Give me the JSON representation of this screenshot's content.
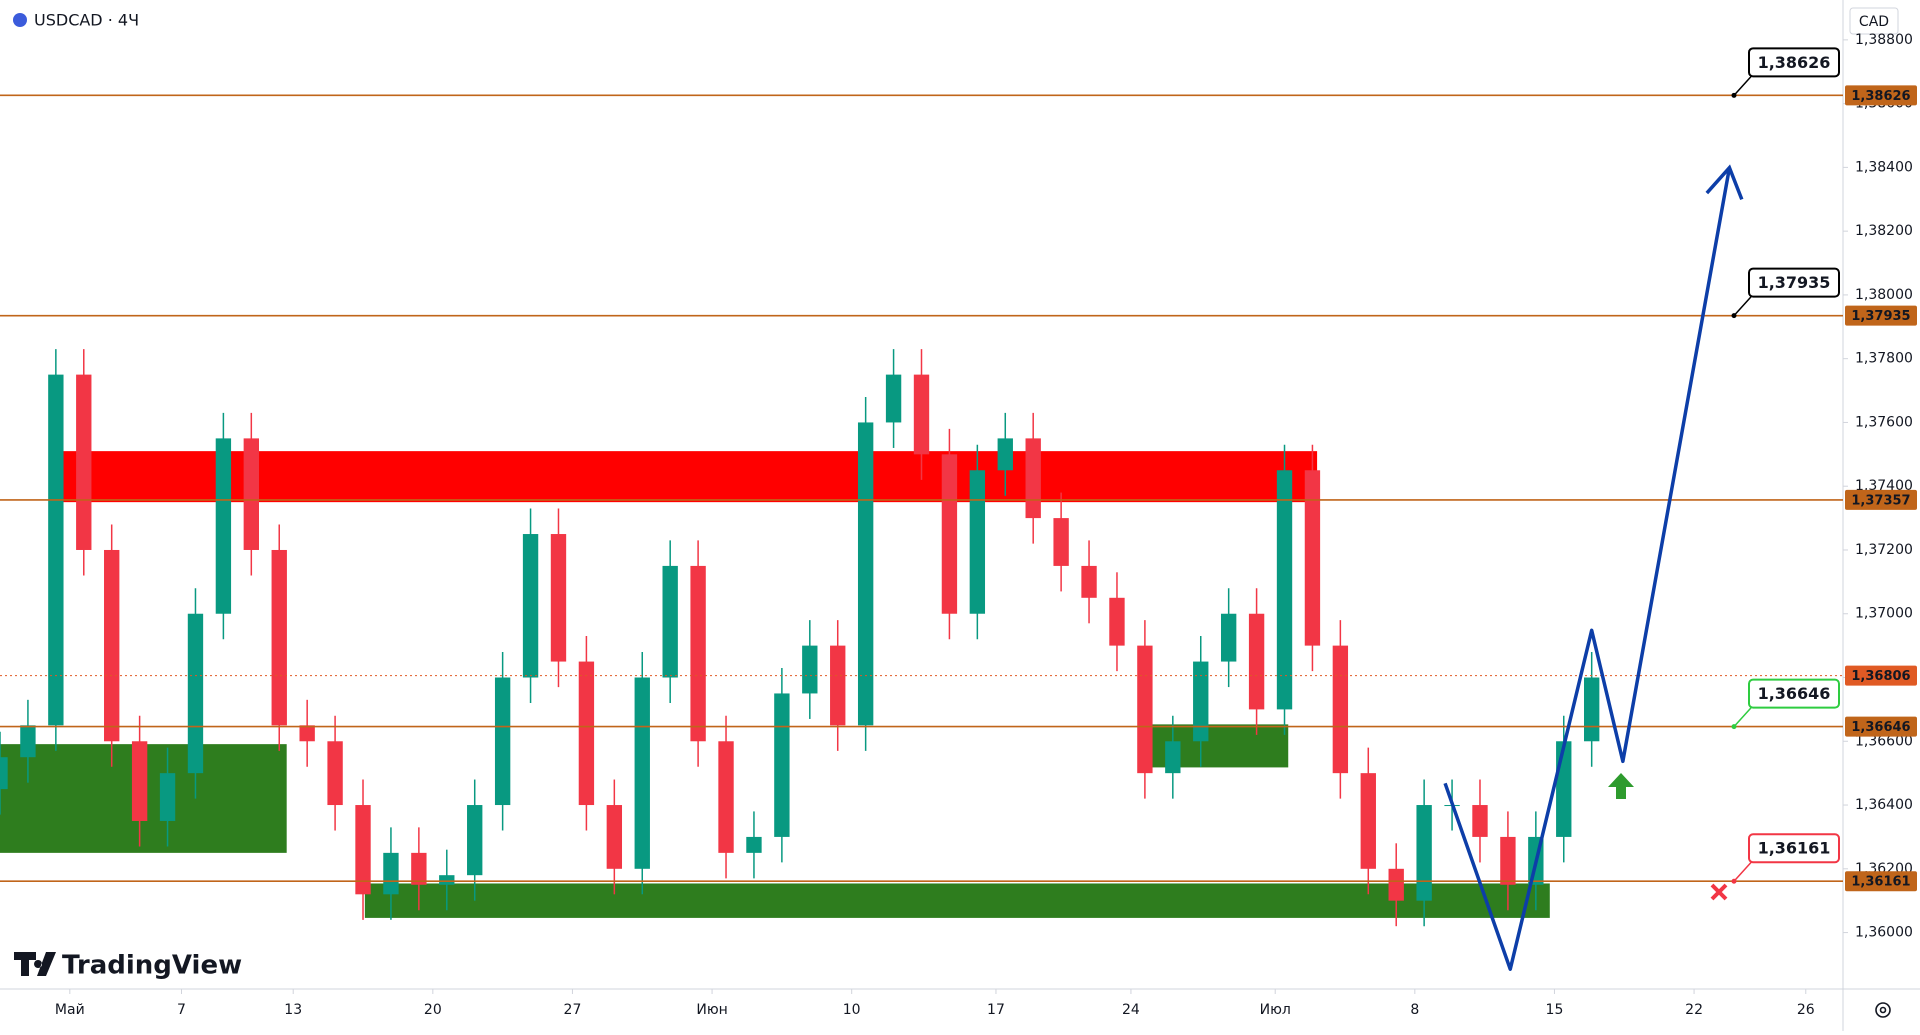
{
  "chart_data": {
    "type": "candlestick",
    "title": "USDCAD · 4Ч",
    "currency": "CAD",
    "brand": "TradingView",
    "up_color": "#089981",
    "down_color": "#f23645",
    "x": [
      0,
      6,
      12,
      18,
      24,
      30,
      36,
      42,
      48,
      54,
      60,
      66,
      72,
      78,
      84,
      90,
      96,
      102,
      108,
      114,
      120,
      126,
      132,
      138,
      144,
      150,
      156,
      162,
      168,
      174,
      180,
      186,
      192,
      198,
      204,
      210,
      216,
      222,
      228,
      234,
      240,
      246,
      252,
      258,
      264,
      270,
      276,
      282,
      288,
      294,
      300,
      306,
      312,
      318,
      324,
      330,
      336,
      342
    ],
    "open": [
      1.3645,
      1.3655,
      1.3665,
      1.3775,
      1.372,
      1.366,
      1.3635,
      1.365,
      1.37,
      1.3755,
      1.372,
      1.3665,
      1.366,
      1.364,
      1.3612,
      1.3625,
      1.3615,
      1.3618,
      1.364,
      1.368,
      1.3725,
      1.3685,
      1.364,
      1.362,
      1.368,
      1.3715,
      1.366,
      1.3625,
      1.363,
      1.3675,
      1.369,
      1.3665,
      1.376,
      1.3775,
      1.375,
      1.37,
      1.3745,
      1.3755,
      1.373,
      1.3715,
      1.3705,
      1.369,
      1.365,
      1.366,
      1.3685,
      1.37,
      1.367,
      1.3745,
      1.369,
      1.365,
      1.362,
      1.361,
      1.364,
      1.364,
      1.363,
      1.3615,
      1.363,
      1.366
    ],
    "high": [
      1.3663,
      1.3673,
      1.3783,
      1.3783,
      1.3728,
      1.3668,
      1.3658,
      1.3708,
      1.3763,
      1.3763,
      1.3728,
      1.3673,
      1.3668,
      1.3648,
      1.3633,
      1.3633,
      1.3626,
      1.3648,
      1.3688,
      1.3733,
      1.3733,
      1.3693,
      1.3648,
      1.3688,
      1.3723,
      1.3723,
      1.3668,
      1.3638,
      1.3683,
      1.3698,
      1.3698,
      1.3768,
      1.3783,
      1.3783,
      1.3758,
      1.3753,
      1.3763,
      1.3763,
      1.3738,
      1.3723,
      1.3713,
      1.3698,
      1.3668,
      1.3693,
      1.3708,
      1.3708,
      1.3753,
      1.3753,
      1.3698,
      1.3658,
      1.3628,
      1.3648,
      1.3648,
      1.3648,
      1.3638,
      1.3638,
      1.3668,
      1.3688
    ],
    "low": [
      1.3637,
      1.3647,
      1.3657,
      1.3712,
      1.3652,
      1.3627,
      1.3627,
      1.3642,
      1.3692,
      1.3712,
      1.3657,
      1.3652,
      1.3632,
      1.3604,
      1.3604,
      1.3607,
      1.3607,
      1.361,
      1.3632,
      1.3672,
      1.3677,
      1.3632,
      1.3612,
      1.3612,
      1.3672,
      1.3652,
      1.3617,
      1.3617,
      1.3622,
      1.3667,
      1.3657,
      1.3657,
      1.3752,
      1.3742,
      1.3692,
      1.3692,
      1.3737,
      1.3722,
      1.3707,
      1.3697,
      1.3682,
      1.3642,
      1.3642,
      1.3652,
      1.3677,
      1.3662,
      1.3662,
      1.3682,
      1.3642,
      1.3612,
      1.3602,
      1.3602,
      1.3632,
      1.3622,
      1.3607,
      1.3607,
      1.3622,
      1.3652
    ],
    "close": [
      1.3655,
      1.3665,
      1.3775,
      1.372,
      1.366,
      1.3635,
      1.365,
      1.37,
      1.3755,
      1.372,
      1.3665,
      1.366,
      1.364,
      1.3612,
      1.3625,
      1.3615,
      1.3618,
      1.364,
      1.368,
      1.3725,
      1.3685,
      1.364,
      1.362,
      1.368,
      1.3715,
      1.366,
      1.3625,
      1.363,
      1.3675,
      1.369,
      1.3665,
      1.376,
      1.3775,
      1.375,
      1.37,
      1.3745,
      1.3755,
      1.373,
      1.3715,
      1.3705,
      1.369,
      1.365,
      1.366,
      1.3685,
      1.37,
      1.367,
      1.3745,
      1.369,
      1.365,
      1.362,
      1.361,
      1.364,
      1.364,
      1.363,
      1.3615,
      1.363,
      1.366,
      1.368
    ],
    "xlim": [
      0,
      396
    ],
    "ylim": [
      1.35823,
      1.38925
    ],
    "xticks": [
      {
        "value": 15,
        "label": "Май"
      },
      {
        "value": 39,
        "label": "7"
      },
      {
        "value": 63,
        "label": "13"
      },
      {
        "value": 93,
        "label": "20"
      },
      {
        "value": 123,
        "label": "27"
      },
      {
        "value": 153,
        "label": "Июн"
      },
      {
        "value": 183,
        "label": "10"
      },
      {
        "value": 214,
        "label": "17"
      },
      {
        "value": 243,
        "label": "24"
      },
      {
        "value": 274,
        "label": "Июл"
      },
      {
        "value": 304,
        "label": "8"
      },
      {
        "value": 334,
        "label": "15"
      },
      {
        "value": 364,
        "label": "22"
      },
      {
        "value": 388,
        "label": "26"
      }
    ],
    "yticks": [
      {
        "value": 1.36,
        "label": "1,36000"
      },
      {
        "value": 1.362,
        "label": "1,36200"
      },
      {
        "value": 1.364,
        "label": "1,36400"
      },
      {
        "value": 1.366,
        "label": "1,36600"
      },
      {
        "value": 1.368,
        "label": "1,36800"
      },
      {
        "value": 1.37,
        "label": "1,37000"
      },
      {
        "value": 1.372,
        "label": "1,37200"
      },
      {
        "value": 1.374,
        "label": "1,37400"
      },
      {
        "value": 1.376,
        "label": "1,37600"
      },
      {
        "value": 1.378,
        "label": "1,37800"
      },
      {
        "value": 1.38,
        "label": "1,38000"
      },
      {
        "value": 1.382,
        "label": "1,38200"
      },
      {
        "value": 1.384,
        "label": "1,38400"
      },
      {
        "value": 1.386,
        "label": "1,38600"
      },
      {
        "value": 1.388,
        "label": "1,38800"
      }
    ],
    "levels": [
      {
        "value": 1.38626,
        "label": "1,38626",
        "color": "#c0651a",
        "callout_color": "#000000"
      },
      {
        "value": 1.37935,
        "label": "1,37935",
        "color": "#c0651a",
        "callout_color": "#000000"
      },
      {
        "value": 1.37357,
        "label": "1,37357",
        "color": "#c0651a"
      },
      {
        "value": 1.36806,
        "label": "1,36806",
        "color": "#e05a24",
        "style": "dotted"
      },
      {
        "value": 1.36646,
        "label": "1,36646",
        "color": "#c0651a",
        "callout_color": "#2ecc40"
      },
      {
        "value": 1.36161,
        "label": "1,36161",
        "color": "#c0651a",
        "callout_color": "#f23645"
      }
    ],
    "zones": [
      {
        "x0": 12.6,
        "x1": 283,
        "y0": 1.3735,
        "y1": 1.3751,
        "color": "#ff0000"
      },
      {
        "x0": 0,
        "x1": 61.6,
        "y0": 1.3625,
        "y1": 1.36591,
        "color": "#2e7d1e"
      },
      {
        "x0": 78.4,
        "x1": 333,
        "y0": 1.36046,
        "y1": 1.36154,
        "color": "#2e7d1e"
      },
      {
        "x0": 247.4,
        "x1": 276.8,
        "y0": 1.36518,
        "y1": 1.36653,
        "color": "#2e7d1e"
      }
    ],
    "projection": {
      "x": [
        310.5,
        324.5,
        342,
        348.7,
        371.6
      ],
      "y": [
        1.36468,
        1.35885,
        1.36948,
        1.36537,
        1.38399
      ],
      "color": "#0d3ea8"
    }
  }
}
